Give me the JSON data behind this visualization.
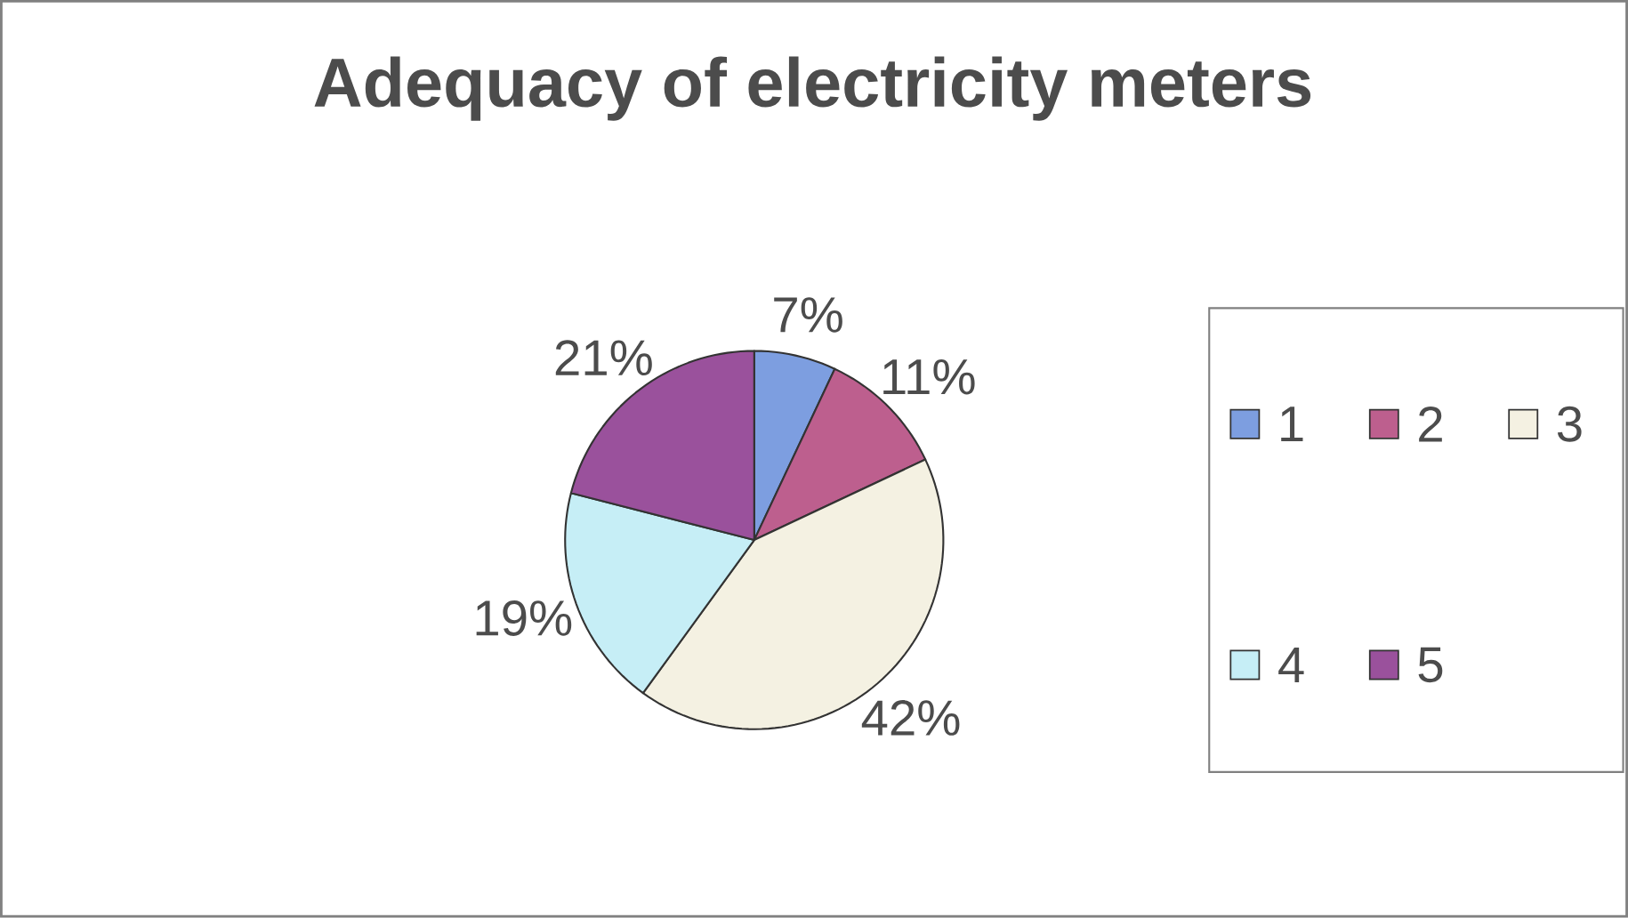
{
  "chart_data": {
    "type": "pie",
    "title": "Adequacy of electricity meters",
    "categories": [
      "1",
      "2",
      "3",
      "4",
      "5"
    ],
    "values": [
      7,
      11,
      42,
      19,
      21
    ],
    "value_labels": [
      "7%",
      "11%",
      "42%",
      "19%",
      "21%"
    ],
    "colors": [
      "#7d9ee0",
      "#bd5f8e",
      "#f4f1e2",
      "#c6eef6",
      "#9a519c"
    ],
    "legend": "right"
  }
}
